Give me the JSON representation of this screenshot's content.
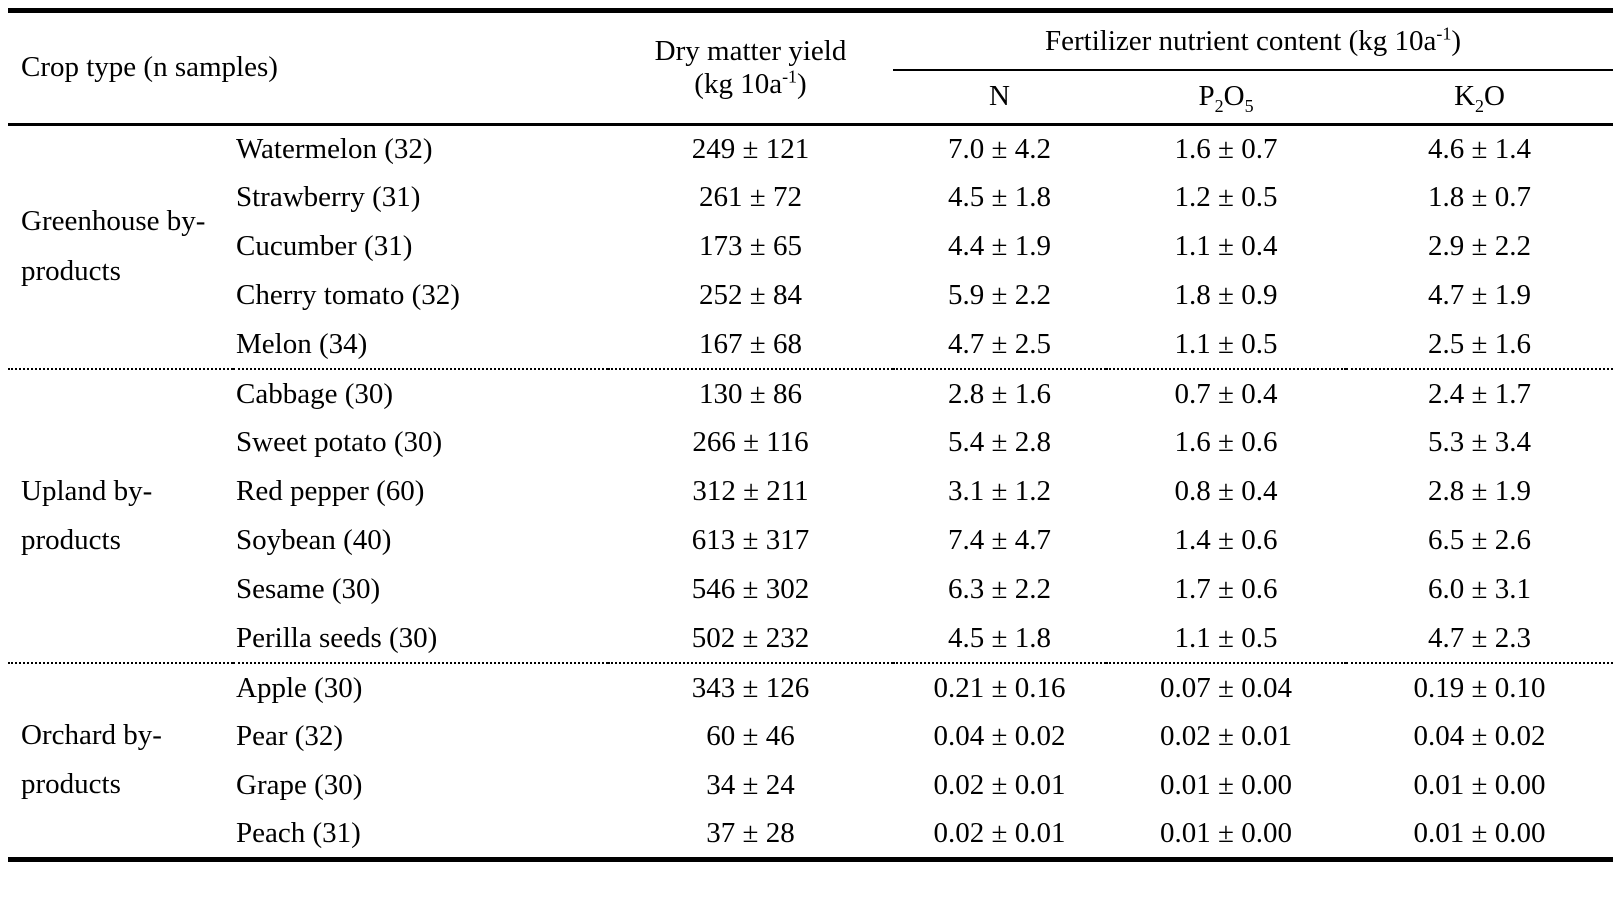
{
  "page": {
    "background": "#ffffff",
    "text_color": "#000000"
  },
  "table": {
    "header": {
      "crop_type_label": "Crop type (n samples)",
      "dry_matter_yield": {
        "line1": "Dry matter yield",
        "unit_pre": "(kg 10a",
        "unit_sup": "-1",
        "unit_post": ")"
      },
      "fertilizer": {
        "pre": "Fertilizer nutrient content (kg 10a",
        "sup": "-1",
        "post": ")"
      },
      "nutrient_columns": {
        "n": "N",
        "p2o5": {
          "base1": "P",
          "sub1": "2",
          "base2": "O",
          "sub2": "5"
        },
        "k2o": {
          "base1": "K",
          "sub1": "2",
          "base2": "O"
        }
      }
    },
    "groups": [
      {
        "label": "Greenhouse by-products",
        "rows": [
          {
            "crop": "Watermelon (32)",
            "yield": "249 ± 121",
            "n": "7.0 ± 4.2",
            "p2o5": "1.6 ± 0.7",
            "k2o": "4.6 ± 1.4"
          },
          {
            "crop": "Strawberry (31)",
            "yield": "261 ± 72",
            "n": "4.5 ± 1.8",
            "p2o5": "1.2 ± 0.5",
            "k2o": "1.8 ± 0.7"
          },
          {
            "crop": "Cucumber (31)",
            "yield": "173 ± 65",
            "n": "4.4 ± 1.9",
            "p2o5": "1.1 ± 0.4",
            "k2o": "2.9 ± 2.2"
          },
          {
            "crop": "Cherry tomato (32)",
            "yield": "252 ± 84",
            "n": "5.9 ± 2.2",
            "p2o5": "1.8 ± 0.9",
            "k2o": "4.7 ± 1.9"
          },
          {
            "crop": "Melon (34)",
            "yield": "167 ± 68",
            "n": "4.7 ± 2.5",
            "p2o5": "1.1 ± 0.5",
            "k2o": "2.5 ± 1.6"
          }
        ]
      },
      {
        "label": "Upland by-products",
        "rows": [
          {
            "crop": "Cabbage (30)",
            "yield": "130 ± 86",
            "n": "2.8 ± 1.6",
            "p2o5": "0.7 ± 0.4",
            "k2o": "2.4 ± 1.7"
          },
          {
            "crop": "Sweet potato (30)",
            "yield": "266 ± 116",
            "n": "5.4 ± 2.8",
            "p2o5": "1.6 ± 0.6",
            "k2o": "5.3 ± 3.4"
          },
          {
            "crop": "Red pepper (60)",
            "yield": "312 ± 211",
            "n": "3.1 ± 1.2",
            "p2o5": "0.8 ± 0.4",
            "k2o": "2.8 ± 1.9"
          },
          {
            "crop": "Soybean (40)",
            "yield": "613 ± 317",
            "n": "7.4 ± 4.7",
            "p2o5": "1.4 ± 0.6",
            "k2o": "6.5 ± 2.6"
          },
          {
            "crop": "Sesame (30)",
            "yield": "546 ± 302",
            "n": "6.3 ± 2.2",
            "p2o5": "1.7 ± 0.6",
            "k2o": "6.0 ± 3.1"
          },
          {
            "crop": "Perilla seeds (30)",
            "yield": "502 ± 232",
            "n": "4.5 ± 1.8",
            "p2o5": "1.1 ± 0.5",
            "k2o": "4.7 ± 2.3"
          }
        ]
      },
      {
        "label": "Orchard by-products",
        "rows": [
          {
            "crop": "Apple (30)",
            "yield": "343 ± 126",
            "n": "0.21 ± 0.16",
            "p2o5": "0.07 ± 0.04",
            "k2o": "0.19 ± 0.10"
          },
          {
            "crop": "Pear (32)",
            "yield": "60 ± 46",
            "n": "0.04 ± 0.02",
            "p2o5": "0.02 ± 0.01",
            "k2o": "0.04 ± 0.02"
          },
          {
            "crop": "Grape (30)",
            "yield": "34 ± 24",
            "n": "0.02 ± 0.01",
            "p2o5": "0.01 ± 0.00",
            "k2o": "0.01 ± 0.00"
          },
          {
            "crop": "Peach (31)",
            "yield": "37 ± 28",
            "n": "0.02 ± 0.01",
            "p2o5": "0.01 ± 0.00",
            "k2o": "0.01 ± 0.00"
          }
        ]
      }
    ]
  }
}
